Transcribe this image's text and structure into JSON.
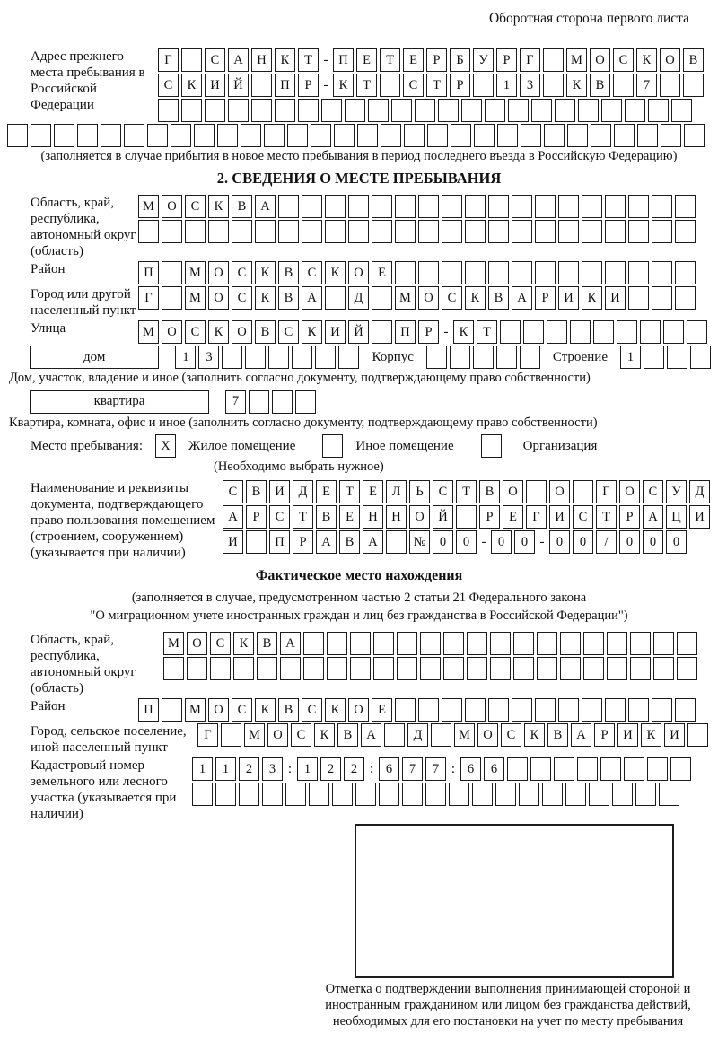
{
  "page": {
    "side_note": "Оборотная сторона первого листа"
  },
  "prev_address": {
    "label": "Адрес прежнего места пребывания в Российской Федерации",
    "rows": [
      "Г·САНКТ-ПЕТЕРБУРГ·МОСКОВ",
      "СКИЙ·ПР-КТ·СТР·13·КВ·7··",
      "·······················"
    ],
    "full_row": "······························",
    "note": "(заполняется в случае прибытия в новое место пребывания в период последнего въезда в Российскую Федерацию)"
  },
  "section2": {
    "title": "2. СВЕДЕНИЯ О МЕСТЕ ПРЕБЫВАНИЯ",
    "oblast": {
      "label": "Область, край, республика, автономный округ (область)",
      "rows": [
        "МОСКВА··················",
        "························"
      ]
    },
    "raion": {
      "label": "Район",
      "rows": [
        "П·МОСКВСКОЕ·············"
      ]
    },
    "gorod": {
      "label": "Город или другой населенный пункт",
      "rows": [
        "Г·МОСКВА·Д·МОСКВАРИКИ···"
      ]
    },
    "ulitsa": {
      "label": "Улица",
      "rows": [
        "МОСКОВСКИЙ·ПР-КТ·········"
      ]
    },
    "dom_row": {
      "box_label": "дом",
      "number_cells": "13······",
      "korpus_label": "Корпус",
      "korpus_cells": "·····",
      "stroenie_label": "Строение",
      "stroenie_cells": "1···"
    },
    "dom_caption": "Дом, участок, владение и иное (заполнить согласно документу, подтверждающему право собственности)",
    "kvartira_row": {
      "box_label": "квартира",
      "cells": "7···"
    },
    "kvartira_caption": "Квартира, комната, офис и иное (заполнить согласно документу, подтверждающему право собственности)",
    "place_type": {
      "label": "Место пребывания:",
      "options": [
        {
          "label": "Жилое помещение",
          "checked": "X"
        },
        {
          "label": "Иное помещение",
          "checked": ""
        },
        {
          "label": "Организация",
          "checked": ""
        }
      ],
      "note": "(Необходимо выбрать нужное)"
    },
    "doc": {
      "label": "Наименование и реквизиты документа, подтверждающего право пользования помещением (строением, сооружением) (указывается при наличии)",
      "rows": [
        "СВИДЕТЕЛЬСТВО·О·ГОСУД",
        "АРСТВЕННОЙ·РЕГИСТРАЦИ",
        "И·ПРАВА·№00-00-00/000"
      ]
    }
  },
  "actual_location": {
    "title": "Фактическое место нахождения",
    "note_line1": "(заполняется в случае, предусмотренном частью 2 статьи 21 Федерального закона",
    "note_line2": "\"О миграционном учете иностранных граждан и лиц без гражданства в Российской Федерации\")",
    "oblast": {
      "label": "Область, край, республика, автономный округ (область)",
      "rows": [
        "МОСКВА·················",
        "·······················"
      ]
    },
    "raion": {
      "label": "Район",
      "rows": [
        "П·МОСКВСКОЕ·············"
      ]
    },
    "gorod": {
      "label": "Город, сельское поселение, иной населенный пункт",
      "rows": [
        "Г·МОСКВА·Д·МОСКВАРИКИ·"
      ]
    },
    "kadastr": {
      "label": "Кадастровый номер земельного или лесного участка (указывается при наличии)",
      "rows": [
        "1123:122:677:66········",
        "·····················"
      ]
    }
  },
  "stamp": {
    "caption": "Отметка о подтверждении выполнения принимающей стороной и иностранным гражданином или лицом без гражданства действий, необходимых для его постановки на учет по месту пребывания"
  }
}
